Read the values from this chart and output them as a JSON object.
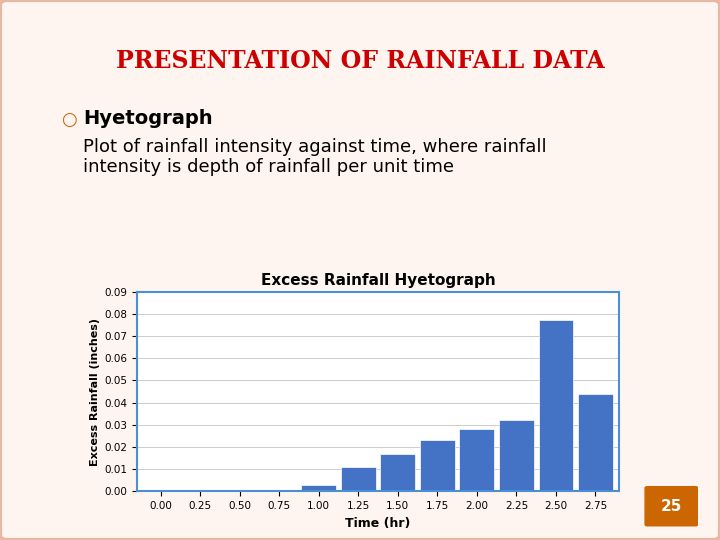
{
  "slide_title": "Presentation of Rainfall Data",
  "title_color": "#cc0000",
  "bullet_text": "Hyetograph",
  "body_text": "Plot of rainfall intensity against time, where rainfall\nintensity is depth of rainfall per unit time",
  "chart_title": "Excess Rainfall Hyetograph",
  "x_values": [
    0.0,
    0.25,
    0.5,
    0.75,
    1.0,
    1.25,
    1.5,
    1.75,
    2.0,
    2.25,
    2.5,
    2.75
  ],
  "bar_heights": [
    0.0,
    0.0,
    0.0,
    0.0,
    0.003,
    0.011,
    0.017,
    0.023,
    0.028,
    0.032,
    0.077,
    0.044
  ],
  "bar_color": "#4472C4",
  "bar_width": 0.22,
  "xlabel": "Time (hr)",
  "ylabel": "Excess Rainfall (inches)",
  "ylim": [
    0,
    0.09
  ],
  "yticks": [
    0.0,
    0.01,
    0.02,
    0.03,
    0.04,
    0.05,
    0.06,
    0.07,
    0.08,
    0.09
  ],
  "xtick_labels": [
    "0.00",
    "0.25",
    "0.50",
    "0.75",
    "1.00",
    "1.25",
    "1.50",
    "1.75",
    "2.00",
    "2.25",
    "2.50",
    "2.75"
  ],
  "background_color": "#ffffff",
  "slide_bg": "#fff5f0",
  "border_color": "#e8b8a0"
}
